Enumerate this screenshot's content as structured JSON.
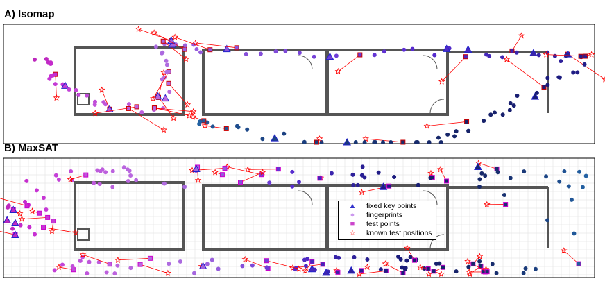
{
  "panels": [
    {
      "title": "A) Isomap"
    },
    {
      "title": "B) MaxSAT"
    }
  ],
  "legend": [
    {
      "label": "fixed key points",
      "icon": "triangle-icon",
      "color": "#3333cc"
    },
    {
      "label": "fingerprints",
      "icon": "circle-icon",
      "color": "#cc99ee"
    },
    {
      "label": "test points",
      "icon": "square-icon",
      "color": "#cc44cc"
    },
    {
      "label": "known test positions",
      "icon": "star-icon",
      "color": "#ff0000"
    }
  ],
  "colors": {
    "link": "#ff0000",
    "wall": "#555555",
    "grid": "#cccccc"
  }
}
